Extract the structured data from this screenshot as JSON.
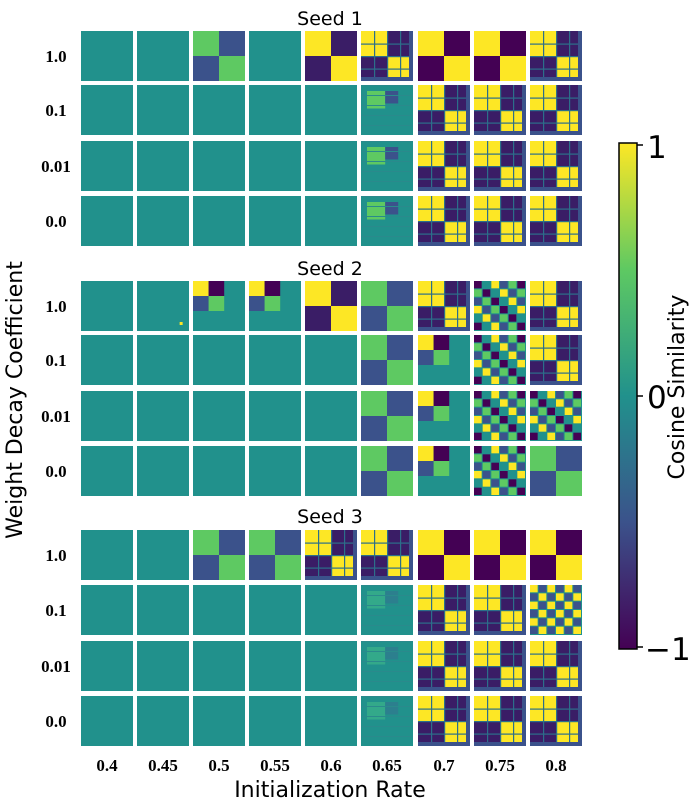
{
  "chart_data": {
    "type": "heatmap",
    "description_units": "each cell is a cosine-similarity matrix thumbnail; pattern encodes visible block structure",
    "xlabel": "Initialization Rate",
    "ylabel": "Weight Decay Coefficient",
    "x_ticks": [
      "0.4",
      "0.45",
      "0.5",
      "0.55",
      "0.6",
      "0.65",
      "0.7",
      "0.75",
      "0.8"
    ],
    "y_ticks": [
      "1.0",
      "0.1",
      "0.01",
      "0.0"
    ],
    "colorbar": {
      "label": "Cosine Similarity",
      "min_label": "−1",
      "mid_label": "0",
      "max_label": "1",
      "range": [
        -1,
        1
      ]
    },
    "colormap": [
      "#440154",
      "#3b528b",
      "#21918c",
      "#5ec962",
      "#fde725"
    ],
    "panels": [
      {
        "title": "Seed 1",
        "grid": [
          [
            "flat",
            "flat",
            "blk2w",
            "flat",
            "blk2",
            "blk3w",
            "blk2s",
            "blk2s",
            "blk3"
          ],
          [
            "flat",
            "flat",
            "flat",
            "flat",
            "flat",
            "weak",
            "blk3",
            "blk3",
            "blk3"
          ],
          [
            "flat",
            "flat",
            "flat",
            "flat",
            "flat",
            "weak",
            "blk3",
            "blk3",
            "blk3"
          ],
          [
            "flat",
            "flat",
            "flat",
            "flat",
            "flat",
            "weak",
            "blk3",
            "blk3",
            "blk3"
          ]
        ]
      },
      {
        "title": "Seed 2",
        "grid": [
          [
            "flat",
            "dot",
            "corner",
            "corner",
            "blk2",
            "blk2w",
            "blk3",
            "noisy",
            "blk3"
          ],
          [
            "flat",
            "flat",
            "flat",
            "flat",
            "flat",
            "blk2w",
            "corner",
            "noisy",
            "blk3"
          ],
          [
            "flat",
            "flat",
            "flat",
            "flat",
            "flat",
            "blk2w",
            "corner",
            "noisy",
            "noisy"
          ],
          [
            "flat",
            "flat",
            "flat",
            "flat",
            "flat",
            "blk2w",
            "corner",
            "noisy",
            "blk2w"
          ]
        ]
      },
      {
        "title": "Seed 3",
        "grid": [
          [
            "flat",
            "flat",
            "blk2w",
            "blk2w",
            "blk3",
            "blk3w",
            "blk2s",
            "blk2s",
            "blk2s"
          ],
          [
            "flat",
            "flat",
            "flat",
            "flat",
            "flat",
            "faint",
            "blk3",
            "blk3",
            "grid"
          ],
          [
            "flat",
            "flat",
            "flat",
            "flat",
            "flat",
            "faint",
            "blk3",
            "blk3",
            "blk3"
          ],
          [
            "flat",
            "flat",
            "flat",
            "flat",
            "flat",
            "faint",
            "blk3",
            "blk3",
            "blk3"
          ]
        ]
      }
    ]
  }
}
